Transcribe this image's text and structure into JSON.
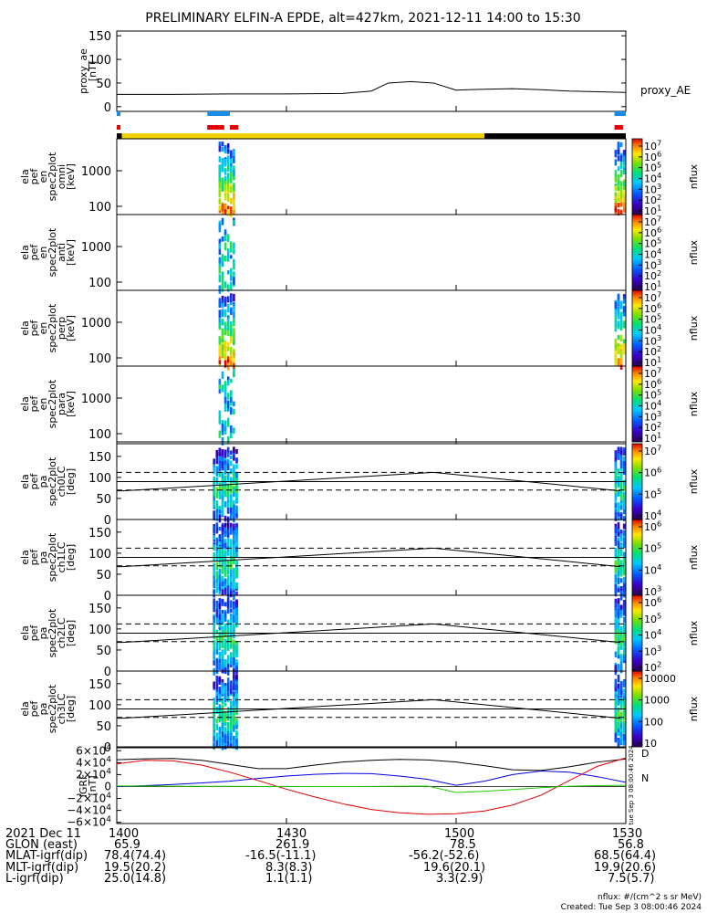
{
  "title": "PRELIMINARY ELFIN-A EPDE, alt=427km, 2021-12-11 14:00 to 15:30",
  "colors": {
    "blue": "#1a8ce6",
    "red": "#e60000",
    "yellow": "#f2d100",
    "black": "#000000",
    "mag_black": "#000000",
    "mag_blue": "#0000dd",
    "mag_red": "#dd0000",
    "mag_green": "#22cc00"
  },
  "chart_data": [
    {
      "type": "line",
      "panel": "proxy_ae",
      "ylabel_lines": [
        "proxy_ae",
        "[nT]"
      ],
      "series_label": "proxy_AE",
      "ylim": [
        -10,
        160
      ],
      "yticks": [
        "150",
        "100",
        "50",
        "0"
      ],
      "x_minutes": [
        0,
        10,
        20,
        30,
        40,
        45,
        48,
        52,
        56,
        60,
        62,
        66,
        70,
        75,
        80,
        90
      ],
      "values": [
        26,
        26,
        27,
        27,
        28,
        33,
        50,
        53,
        50,
        35,
        36,
        37,
        38,
        36,
        33,
        30
      ]
    },
    {
      "type": "bar",
      "panel": "status_bars",
      "blue_segments": [
        [
          0,
          0.3
        ],
        [
          16,
          20
        ],
        [
          88,
          90
        ]
      ],
      "red_segments": [
        [
          0,
          0.3
        ],
        [
          16,
          19
        ],
        [
          20,
          21.5
        ],
        [
          88,
          89.5
        ]
      ],
      "orbit_segments": [
        {
          "color": "black",
          "range": [
            0,
            0.9
          ]
        },
        {
          "color": "yellow",
          "range": [
            0.9,
            65
          ]
        },
        {
          "color": "black",
          "range": [
            65,
            90
          ]
        }
      ]
    },
    {
      "type": "heatmap",
      "panel": "spec_omni",
      "ylabel_lines": [
        "ela",
        "pef",
        "en",
        "spec2plot",
        "omni",
        "[keV]"
      ],
      "yticks": [
        "1000",
        "100"
      ],
      "colorbar_ticks": [
        "10^7",
        "10^6",
        "10^5",
        "10^4",
        "10^3",
        "10^2",
        "10^1"
      ],
      "colorbar_label": "nflux",
      "bursts": [
        [
          18,
          21
        ],
        [
          88,
          90
        ]
      ]
    },
    {
      "type": "heatmap",
      "panel": "spec_anti",
      "ylabel_lines": [
        "ela",
        "pef",
        "en",
        "spec2plot",
        "anti",
        "[keV]"
      ],
      "yticks": [
        "1000",
        "100"
      ],
      "colorbar_ticks": [
        "10^7",
        "10^6",
        "10^5",
        "10^4",
        "10^3",
        "10^2",
        "10^1"
      ],
      "colorbar_label": "nflux",
      "bursts": [
        [
          18,
          21
        ]
      ]
    },
    {
      "type": "heatmap",
      "panel": "spec_perp",
      "ylabel_lines": [
        "ela",
        "pef",
        "en",
        "spec2plot",
        "perp",
        "[keV]"
      ],
      "yticks": [
        "1000",
        "100"
      ],
      "colorbar_ticks": [
        "10^7",
        "10^6",
        "10^5",
        "10^4",
        "10^3",
        "10^2",
        "10^1"
      ],
      "colorbar_label": "nflux",
      "bursts": [
        [
          18,
          21
        ],
        [
          88,
          90
        ]
      ]
    },
    {
      "type": "heatmap",
      "panel": "spec_para",
      "ylabel_lines": [
        "ela",
        "pef",
        "en",
        "spec2plot",
        "para",
        "[keV]"
      ],
      "yticks": [
        "1000",
        "100"
      ],
      "colorbar_ticks": [
        "10^7",
        "10^6",
        "10^5",
        "10^4",
        "10^3",
        "10^2",
        "10^1"
      ],
      "colorbar_label": "nflux",
      "bursts": [
        [
          18,
          21
        ]
      ]
    },
    {
      "type": "heatmap",
      "panel": "pa_ch0",
      "ylabel_lines": [
        "ela",
        "pef",
        "pa",
        "spec2plot",
        "ch0LC",
        "[deg]"
      ],
      "yticks": [
        "150",
        "100",
        "50",
        "0"
      ],
      "ylim": [
        0,
        180
      ],
      "colorbar_ticks": [
        "10^7",
        "10^6",
        "10^5",
        "10^4"
      ],
      "colorbar_label": "nflux",
      "loss_cone": {
        "x_minutes": [
          1,
          56,
          89
        ],
        "upper": [
          68,
          112,
          68
        ],
        "lower": [
          68,
          112,
          68
        ],
        "dashed_upper": 112,
        "dashed_lower": 68,
        "ref": 90
      }
    },
    {
      "type": "heatmap",
      "panel": "pa_ch1",
      "ylabel_lines": [
        "ela",
        "pef",
        "pa",
        "spec2plot",
        "ch1LC",
        "[deg]"
      ],
      "yticks": [
        "150",
        "100",
        "50",
        "0"
      ],
      "ylim": [
        0,
        180
      ],
      "colorbar_ticks": [
        "10^6",
        "10^5",
        "10^4",
        "10^3"
      ],
      "colorbar_label": "nflux",
      "loss_cone": {
        "x_minutes": [
          1,
          56,
          89
        ],
        "upper": [
          68,
          112,
          68
        ],
        "lower": [
          68,
          112,
          68
        ],
        "dashed_upper": 112,
        "dashed_lower": 68,
        "ref": 90
      }
    },
    {
      "type": "heatmap",
      "panel": "pa_ch2",
      "ylabel_lines": [
        "ela",
        "pef",
        "pa",
        "spec2plot",
        "ch2LC",
        "[deg]"
      ],
      "yticks": [
        "150",
        "100",
        "50",
        "0"
      ],
      "ylim": [
        0,
        180
      ],
      "colorbar_ticks": [
        "10^6",
        "10^5",
        "10^4",
        "10^3",
        "10^2"
      ],
      "colorbar_label": "nflux",
      "loss_cone": {
        "x_minutes": [
          1,
          56,
          89
        ],
        "upper": [
          68,
          112,
          68
        ],
        "lower": [
          68,
          112,
          68
        ],
        "dashed_upper": 112,
        "dashed_lower": 68,
        "ref": 90
      }
    },
    {
      "type": "heatmap",
      "panel": "pa_ch3",
      "ylabel_lines": [
        "ela",
        "pef",
        "pa",
        "spec2plot",
        "ch3LC",
        "[deg]"
      ],
      "yticks": [
        "150",
        "100",
        "50",
        "0"
      ],
      "ylim": [
        0,
        180
      ],
      "colorbar_ticks": [
        "10000",
        "1000",
        "100",
        "10"
      ],
      "colorbar_label": "nflux",
      "loss_cone": {
        "x_minutes": [
          1,
          56,
          89
        ],
        "upper": [
          68,
          112,
          68
        ],
        "lower": [
          68,
          112,
          68
        ],
        "dashed_upper": 112,
        "dashed_lower": 68,
        "ref": 90
      }
    },
    {
      "type": "line",
      "panel": "igrf",
      "ylabel_lines": [
        "IGRF",
        "[nT]"
      ],
      "ylim": [
        -62000,
        65000
      ],
      "yticks": [
        "6×10^4",
        "4×10^4",
        "2×10^4",
        "0",
        "−2×10^4",
        "−4×10^4",
        "−6×10^4"
      ],
      "legend_label": "D",
      "legend_label2": "N",
      "side_note": "tue Sep 3 08:00:46 2024",
      "x_minutes": [
        0,
        5,
        10,
        15,
        20,
        25,
        30,
        35,
        40,
        45,
        50,
        55,
        60,
        65,
        70,
        75,
        80,
        85,
        90
      ],
      "series": [
        {
          "name": "black",
          "values": [
            45000,
            46500,
            47000,
            44000,
            37000,
            30000,
            30000,
            36000,
            41000,
            44000,
            45500,
            44500,
            41000,
            35000,
            28000,
            27000,
            33000,
            41000,
            46000
          ]
        },
        {
          "name": "blue",
          "values": [
            0,
            1500,
            3500,
            6000,
            9000,
            13500,
            17500,
            20500,
            22000,
            21500,
            17500,
            12000,
            2000,
            9000,
            20000,
            26000,
            24000,
            16500,
            7000
          ]
        },
        {
          "name": "red",
          "values": [
            38000,
            44000,
            43000,
            36000,
            24000,
            10000,
            -4500,
            -17500,
            -29000,
            -38500,
            -44000,
            -46500,
            -45500,
            -41000,
            -31000,
            -14500,
            10000,
            34000,
            48000
          ]
        },
        {
          "name": "green",
          "values": [
            1000,
            1000,
            500,
            400,
            300,
            200,
            100,
            0,
            0,
            200,
            500,
            800,
            -10000,
            -8000,
            -5000,
            -2000,
            500,
            1500,
            2000
          ]
        }
      ]
    }
  ],
  "time_axis": {
    "tick_minutes": [
      0,
      30,
      60,
      90
    ],
    "tick_labels": [
      "1400",
      "1430",
      "1500",
      "1530"
    ],
    "date_label": "2021 Dec 11"
  },
  "ephemeris": [
    {
      "label": "GLON (east)",
      "values": [
        "65.9",
        "261.9",
        "78.5",
        "56.8"
      ]
    },
    {
      "label": "MLAT-igrf(dip)",
      "values": [
        "78.4(74.4)",
        "-16.5(-11.1)",
        "-56.2(-52.6)",
        "68.5(64.4)"
      ]
    },
    {
      "label": "MLT-igrf(dip)",
      "values": [
        "19.5(20.2)",
        "8.3(8.3)",
        "19.6(20.1)",
        "19.9(20.6)"
      ]
    },
    {
      "label": "L-igrf(dip)",
      "values": [
        "25.0(14.8)",
        "1.1(1.1)",
        "3.3(2.9)",
        "7.5(5.7)"
      ]
    }
  ],
  "footer": {
    "units_note": "nflux: #/(cm^2 s sr MeV)",
    "created": "Created: Tue Sep  3 08:00:46 2024"
  }
}
